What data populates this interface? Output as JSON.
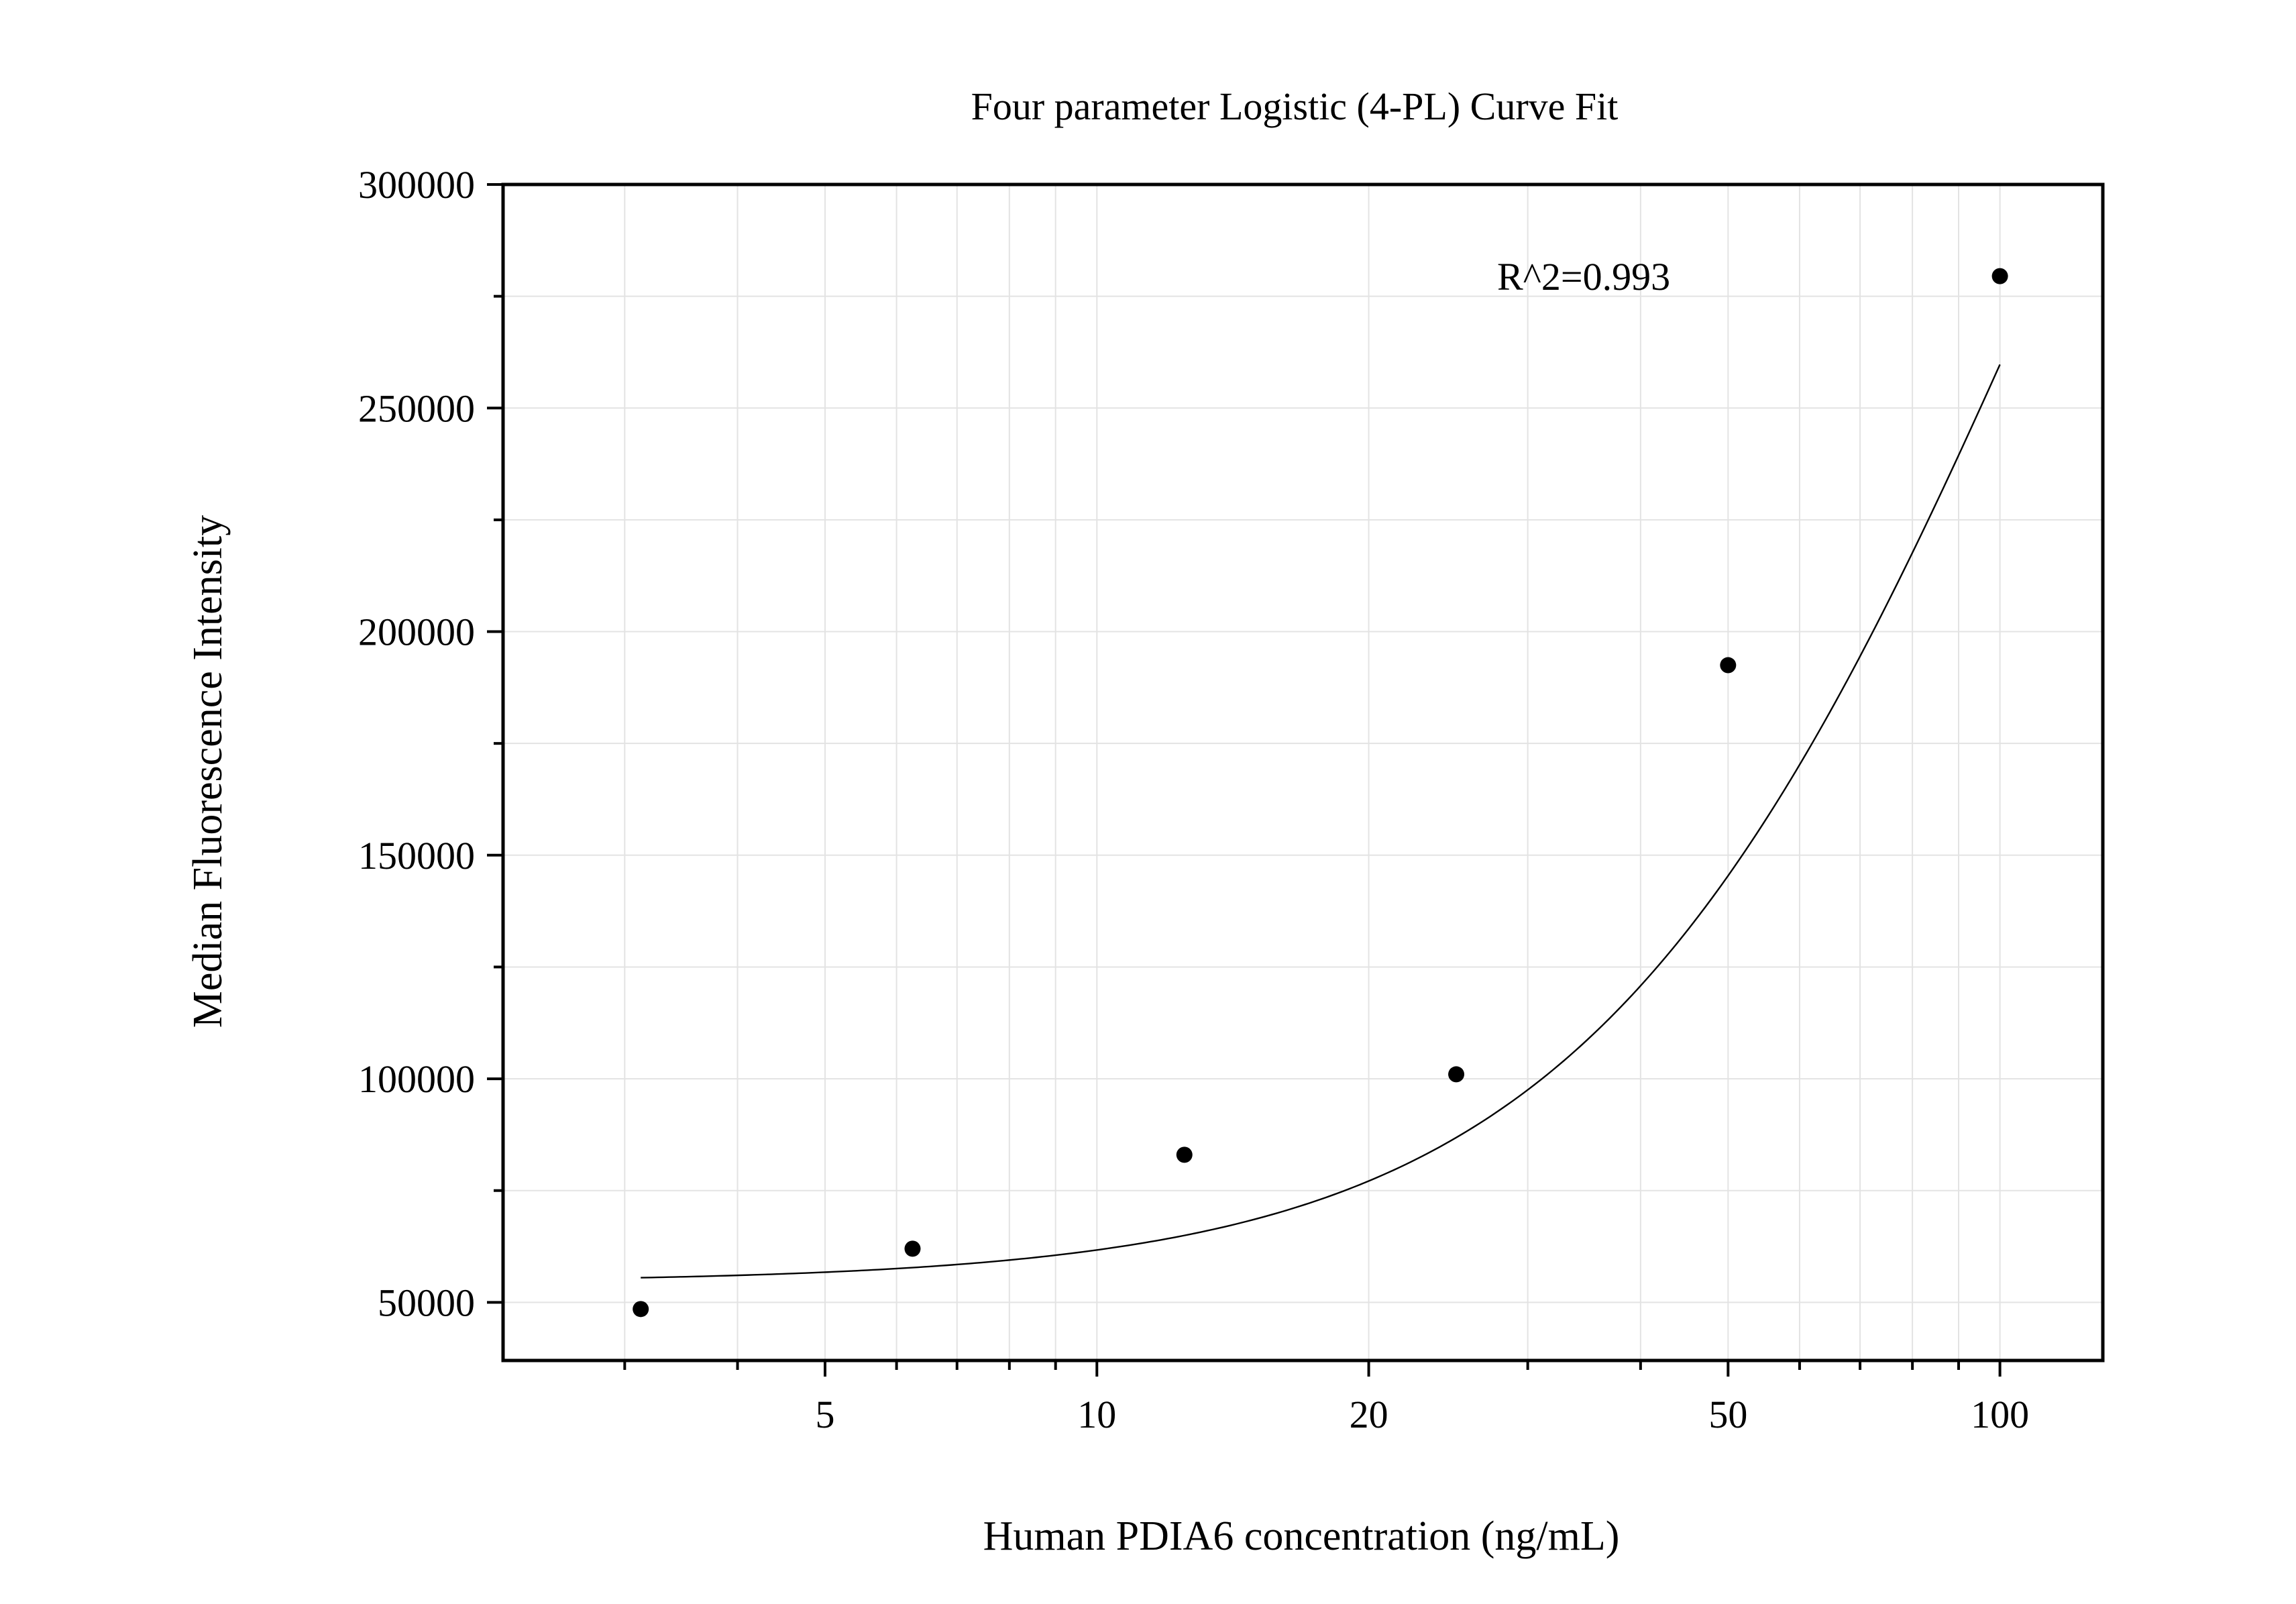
{
  "chart_data": {
    "type": "scatter",
    "title": "Four parameter Logistic (4-PL) Curve Fit",
    "xlabel": "Human PDIA6 concentration (ng/mL)",
    "ylabel": "Median Fluorescence Intensity",
    "x_scale": "log",
    "xlim": [
      2.2,
      130
    ],
    "ylim": [
      37000,
      300000
    ],
    "x_ticks": [
      5,
      10,
      20,
      50,
      100
    ],
    "x_tick_labels": [
      "5",
      "10",
      "20",
      "50",
      100
    ],
    "y_ticks": [
      50000,
      100000,
      150000,
      200000,
      250000,
      300000
    ],
    "y_tick_labels": [
      "50000",
      "100000",
      "150000",
      "200000",
      "250000",
      "300000"
    ],
    "grid": true,
    "annotation": "R^2=0.993",
    "series": [
      {
        "x": [
          3.125,
          6.25,
          12.5,
          25,
          50,
          100
        ],
        "y": [
          48500,
          62000,
          83000,
          101000,
          192500,
          279500
        ]
      }
    ],
    "fit": {
      "model": "4PL",
      "bottom": 54500,
      "top": 520000,
      "ec50": 115,
      "hill": 1.7,
      "x_range": [
        3.125,
        100
      ]
    }
  }
}
